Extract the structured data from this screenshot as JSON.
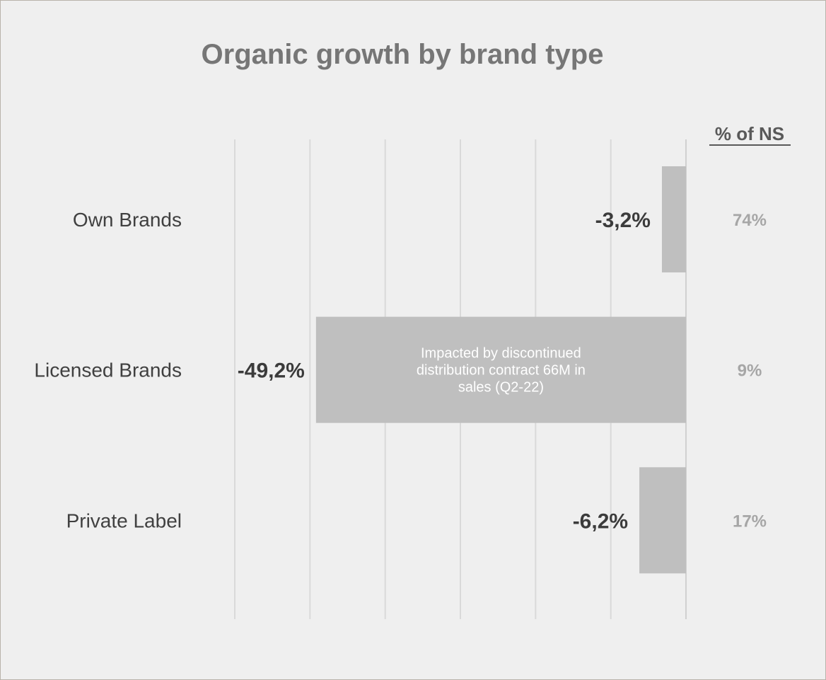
{
  "chart_data": {
    "type": "bar",
    "orientation": "horizontal",
    "title": "Organic growth by brand type",
    "categories": [
      "Own Brands",
      "Licensed Brands",
      "Private Label"
    ],
    "values": [
      -3.2,
      -49.2,
      -6.2
    ],
    "value_labels": [
      "-3,2%",
      "-49,2%",
      "-6,2%"
    ],
    "xlim": [
      -60,
      0
    ],
    "grid": true,
    "bar_color": "#bfbfbf",
    "share_header": "% of NS",
    "share_values": [
      "74%",
      "9%",
      "17%"
    ],
    "annotation": {
      "category": "Licensed Brands",
      "lines": [
        "Impacted by discontinued",
        "distribution contract 66M in",
        "sales (Q2-22)"
      ]
    }
  }
}
